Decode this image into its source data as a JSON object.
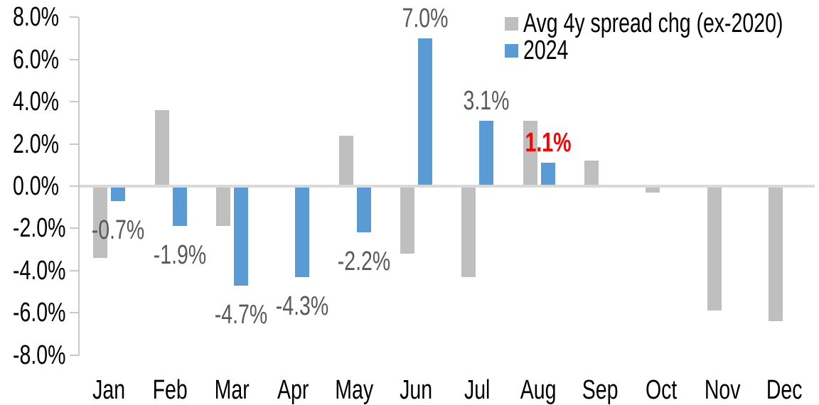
{
  "chart_data": {
    "type": "bar",
    "title": "",
    "xlabel": "",
    "ylabel": "",
    "categories": [
      "Jan",
      "Feb",
      "Mar",
      "Apr",
      "May",
      "Jun",
      "Jul",
      "Aug",
      "Sep",
      "Oct",
      "Nov",
      "Dec"
    ],
    "series": [
      {
        "name": "Avg 4y spread chg (ex-2020)",
        "color": "#BFBFBF",
        "values": [
          -3.4,
          3.6,
          -1.9,
          0.0,
          2.4,
          -3.2,
          -4.3,
          3.1,
          1.2,
          -0.3,
          -5.9,
          -6.4
        ]
      },
      {
        "name": "2024",
        "color": "#5B9BD5",
        "values": [
          -0.7,
          -1.9,
          -4.7,
          -4.3,
          -2.2,
          7.0,
          3.1,
          1.1,
          null,
          null,
          null,
          null
        ],
        "data_labels": [
          {
            "text": "-0.7%",
            "color": "#595959",
            "bold": false
          },
          {
            "text": "-1.9%",
            "color": "#595959",
            "bold": false
          },
          {
            "text": "-4.7%",
            "color": "#595959",
            "bold": false
          },
          {
            "text": "-4.3%",
            "color": "#595959",
            "bold": false
          },
          {
            "text": "-2.2%",
            "color": "#595959",
            "bold": false
          },
          {
            "text": "7.0%",
            "color": "#595959",
            "bold": false
          },
          {
            "text": "3.1%",
            "color": "#595959",
            "bold": false
          },
          {
            "text": "1.1%",
            "color": "#FF0000",
            "bold": true
          },
          null,
          null,
          null,
          null
        ]
      }
    ],
    "ylim": [
      -8,
      8
    ],
    "yticks": [
      {
        "label": "8.0%",
        "value": 8
      },
      {
        "label": "6.0%",
        "value": 6
      },
      {
        "label": "4.0%",
        "value": 4
      },
      {
        "label": "2.0%",
        "value": 2
      },
      {
        "label": "0.0%",
        "value": 0
      },
      {
        "label": "-2.0%",
        "value": -2
      },
      {
        "label": "-4.0%",
        "value": -4
      },
      {
        "label": "-6.0%",
        "value": -6
      },
      {
        "label": "-8.0%",
        "value": -8
      }
    ],
    "grid": "zero-line-only",
    "legend_position": "top-right",
    "colors": {
      "axis_line": "#C9C9C9",
      "zero_line": "#D9D9D9",
      "tick_text": "#000000",
      "data_label_default": "#595959",
      "data_label_highlight": "#FF0000",
      "background": "#FFFFFF"
    }
  }
}
